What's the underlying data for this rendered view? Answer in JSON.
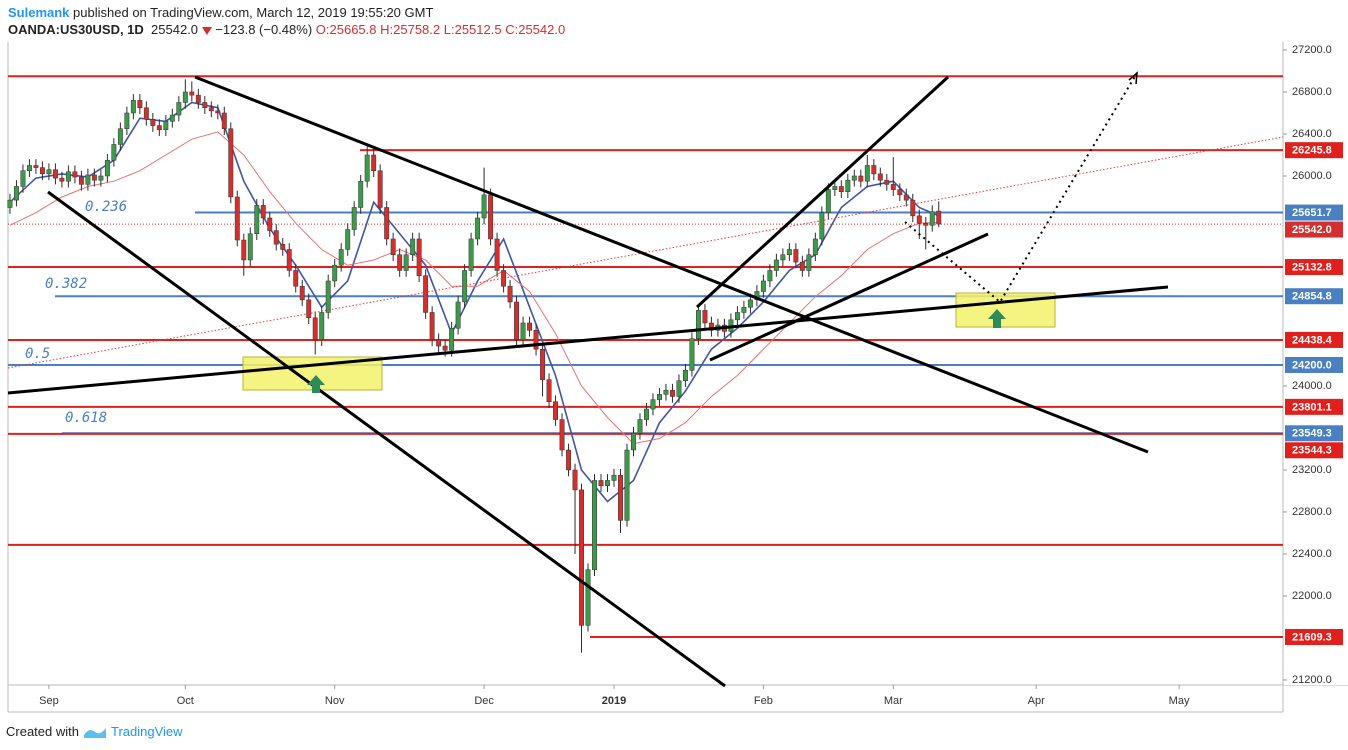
{
  "header": {
    "author": "Sulemank",
    "published": "published on TradingView.com, March 12, 2019 19:55:20 GMT",
    "symbol": "OANDA:US30USD, 1D",
    "last": "25542.0",
    "change": "−123.8 (−0.48%)",
    "open": "O:25665.8",
    "high": "H:25758.2",
    "low": "L:25512.5",
    "close": "C:25542.0"
  },
  "footer": {
    "created": "Created with",
    "brand": "TradingView"
  },
  "chart_data": {
    "type": "candlestick",
    "up_color": "#3d9a4a",
    "down_color": "#d32f2f",
    "wick_color": "#2b2b2b",
    "open": [
      25700,
      25770,
      25900,
      26050,
      26100,
      26080,
      26020,
      26060,
      25980,
      25950,
      26040,
      25990,
      25920,
      26010,
      25960,
      26000,
      26150,
      26300,
      26450,
      26600,
      26720,
      26650,
      26540,
      26480,
      26440,
      26520,
      26580,
      26700,
      26800,
      26770,
      26700,
      26650,
      26620,
      26600,
      26450,
      25800,
      25390,
      25200,
      25450,
      25720,
      25600,
      25480,
      25350,
      25300,
      25100,
      24950,
      24820,
      24650,
      24440,
      24700,
      25000,
      25150,
      25300,
      25490,
      25700,
      25950,
      26200,
      26050,
      25700,
      25400,
      25250,
      25100,
      25250,
      25400,
      25050,
      24700,
      24440,
      24380,
      24340,
      24550,
      24800,
      25100,
      25400,
      25600,
      25820,
      25400,
      25100,
      24950,
      24800,
      24440,
      24600,
      24530,
      24350,
      24060,
      23850,
      23680,
      23390,
      23200,
      23010,
      21720,
      22250,
      23100,
      23050,
      23100,
      23150,
      22720,
      23390,
      23550,
      23680,
      23780,
      23870,
      23920,
      23960,
      23900,
      24050,
      24150,
      24450,
      24720,
      24600,
      24530,
      24580,
      24520,
      24630,
      24700,
      24750,
      24820,
      24900,
      25000,
      25100,
      25200,
      25250,
      25300,
      25180,
      25100,
      25250,
      25400,
      25650,
      25870,
      25900,
      25850,
      25960,
      26000,
      25950,
      26100,
      26020,
      25960,
      25920,
      25870,
      25820,
      25770,
      25620,
      25550,
      25530,
      25665.8
    ],
    "high": [
      25830,
      25960,
      26110,
      26160,
      26160,
      26140,
      26120,
      26120,
      26040,
      26100,
      26100,
      26050,
      26070,
      26070,
      26060,
      26210,
      26360,
      26510,
      26660,
      26780,
      26780,
      26710,
      26600,
      26540,
      26580,
      26640,
      26760,
      26920,
      26900,
      26830,
      26760,
      26710,
      26680,
      26660,
      26510,
      25860,
      25450,
      25510,
      25780,
      25780,
      25660,
      25540,
      25410,
      25360,
      25160,
      25010,
      24880,
      24710,
      24760,
      25060,
      25210,
      25360,
      25550,
      25760,
      26010,
      26280,
      26260,
      26110,
      25760,
      25460,
      25310,
      25310,
      25460,
      25460,
      25110,
      24760,
      24500,
      24440,
      24610,
      24860,
      25160,
      25460,
      25660,
      26080,
      25880,
      25460,
      25160,
      25010,
      24860,
      24660,
      24660,
      24590,
      24410,
      24120,
      23910,
      23740,
      23450,
      23260,
      23070,
      22310,
      23160,
      23160,
      23160,
      23210,
      23210,
      23450,
      23610,
      23740,
      23840,
      23930,
      23980,
      24020,
      24020,
      24110,
      24210,
      24510,
      24780,
      24780,
      24660,
      24640,
      24640,
      24690,
      24760,
      24810,
      24880,
      24960,
      25060,
      25160,
      25260,
      25310,
      25360,
      25360,
      25240,
      25310,
      25460,
      25710,
      25930,
      25960,
      25960,
      26020,
      26060,
      26060,
      26200,
      26160,
      26080,
      26020,
      26180,
      25930,
      25880,
      25830,
      25680,
      25610,
      25720,
      25758.2
    ],
    "low": [
      25640,
      25710,
      25840,
      25990,
      26020,
      25960,
      25960,
      25920,
      25890,
      25890,
      25930,
      25860,
      25860,
      25900,
      25900,
      25940,
      26090,
      26240,
      26390,
      26540,
      26590,
      26480,
      26420,
      26380,
      26380,
      26460,
      26520,
      26640,
      26710,
      26640,
      26590,
      26560,
      26540,
      26390,
      25740,
      25330,
      25050,
      25140,
      25390,
      25540,
      25420,
      25290,
      25240,
      25040,
      24890,
      24760,
      24590,
      24300,
      24380,
      24640,
      24940,
      25090,
      25240,
      25430,
      25640,
      25890,
      25990,
      25640,
      25340,
      25190,
      25040,
      25040,
      25190,
      24990,
      24640,
      24380,
      24320,
      24280,
      24280,
      24490,
      24740,
      25040,
      25340,
      25540,
      25340,
      25040,
      24890,
      24740,
      24380,
      24380,
      24470,
      24290,
      23900,
      23790,
      23620,
      23330,
      23140,
      22400,
      21460,
      21660,
      22190,
      22990,
      22990,
      23040,
      22600,
      22660,
      23330,
      23490,
      23620,
      23720,
      23810,
      23860,
      23840,
      23840,
      23990,
      24090,
      24390,
      24540,
      24470,
      24470,
      24460,
      24460,
      24570,
      24640,
      24690,
      24760,
      24840,
      24940,
      25040,
      25140,
      25190,
      25120,
      25040,
      25040,
      25190,
      25340,
      25590,
      25810,
      25790,
      25790,
      25900,
      25890,
      25890,
      25960,
      25900,
      25860,
      25810,
      25760,
      25710,
      25560,
      25400,
      25300,
      25470,
      25512.5
    ],
    "close": [
      25770,
      25900,
      26050,
      26100,
      26080,
      26020,
      26060,
      25980,
      25950,
      26040,
      25990,
      25920,
      26010,
      25960,
      26000,
      26150,
      26300,
      26450,
      26600,
      26720,
      26650,
      26540,
      26480,
      26440,
      26520,
      26580,
      26700,
      26800,
      26770,
      26700,
      26650,
      26620,
      26600,
      26450,
      25800,
      25390,
      25200,
      25450,
      25720,
      25600,
      25480,
      25350,
      25300,
      25100,
      24950,
      24820,
      24650,
      24440,
      24700,
      25000,
      25150,
      25300,
      25490,
      25700,
      25950,
      26200,
      26050,
      25700,
      25400,
      25250,
      25100,
      25250,
      25400,
      25050,
      24700,
      24440,
      24380,
      24340,
      24550,
      24800,
      25100,
      25400,
      25600,
      25820,
      25400,
      25100,
      24950,
      24800,
      24440,
      24600,
      24530,
      24350,
      24060,
      23850,
      23680,
      23390,
      23200,
      23010,
      21720,
      22250,
      23100,
      23050,
      23100,
      23150,
      22720,
      23390,
      23550,
      23680,
      23780,
      23870,
      23920,
      23960,
      23900,
      24050,
      24150,
      24450,
      24720,
      24600,
      24530,
      24580,
      24520,
      24630,
      24700,
      24750,
      24820,
      24900,
      25000,
      25100,
      25200,
      25250,
      25300,
      25180,
      25100,
      25250,
      25400,
      25650,
      25870,
      25900,
      25850,
      25960,
      26000,
      25950,
      26100,
      26020,
      25960,
      25920,
      25870,
      25820,
      25770,
      25620,
      25550,
      25530,
      25660,
      25542
    ],
    "moving_averages": [
      {
        "color": "#3f55a5",
        "x": [
          0,
          4,
          8,
          12,
          16,
          20,
          24,
          28,
          32,
          36,
          40,
          44,
          48,
          52,
          56,
          60,
          64,
          68,
          72,
          76,
          80,
          84,
          88,
          92,
          96,
          100,
          104,
          108,
          112,
          116,
          120,
          124,
          128,
          132,
          136,
          140,
          143
        ],
        "values": [
          25750,
          25980,
          26020,
          25990,
          26150,
          26550,
          26520,
          26700,
          26650,
          25950,
          25500,
          25150,
          24750,
          25000,
          25750,
          25450,
          25150,
          24500,
          25000,
          25400,
          24750,
          24100,
          23200,
          22900,
          23100,
          23650,
          23950,
          24350,
          24550,
          24800,
          25100,
          25250,
          25700,
          25900,
          25950,
          25700,
          25620
        ]
      },
      {
        "color": "#e57373",
        "x": [
          0,
          4,
          8,
          12,
          16,
          20,
          24,
          28,
          32,
          36,
          40,
          44,
          48,
          52,
          56,
          60,
          64,
          68,
          72,
          76,
          80,
          84,
          88,
          92,
          96,
          100,
          104,
          108,
          112,
          116,
          120,
          124,
          128,
          132,
          136,
          140,
          143
        ],
        "values": [
          25530,
          25650,
          25800,
          25900,
          25950,
          26050,
          26200,
          26350,
          26420,
          26200,
          25850,
          25550,
          25300,
          25150,
          25200,
          25300,
          25200,
          24950,
          24950,
          25100,
          24900,
          24500,
          24000,
          23700,
          23450,
          23500,
          23650,
          23900,
          24100,
          24350,
          24600,
          24850,
          25050,
          25300,
          25450,
          25550,
          25560
        ]
      }
    ],
    "levels": [
      {
        "value": 26950,
        "color": "#e0201c",
        "tagged": false
      },
      {
        "value": 26245.8,
        "color": "#e0201c",
        "tagged": true
      },
      {
        "value": 25651.7,
        "color": "#4a7fc1",
        "tagged": true,
        "fib": "0.236"
      },
      {
        "value": 25132.8,
        "color": "#e0201c",
        "tagged": true
      },
      {
        "value": 24854.8,
        "color": "#4a7fc1",
        "tagged": true,
        "fib": "0.382"
      },
      {
        "value": 24438.4,
        "color": "#e0201c",
        "tagged": true
      },
      {
        "value": 24200,
        "label": "24200.0",
        "color": "#4a7fc1",
        "tagged": true,
        "fib": "0.5"
      },
      {
        "value": 23801.1,
        "color": "#e0201c",
        "tagged": true
      },
      {
        "value": 23549.3,
        "color": "#4a7fc1",
        "tagged": true,
        "fib": "0.618"
      },
      {
        "value": 23544.3,
        "color": "#e0201c",
        "tagged": true
      },
      {
        "value": 22486,
        "color": "#e0201c",
        "tagged": false
      },
      {
        "value": 21609.3,
        "color": "#e0201c",
        "tagged": true
      }
    ],
    "last_price": {
      "value": 25542,
      "label": "25542.0",
      "color": "#d32f2f"
    },
    "xlim": [
      -0.3,
      196
    ],
    "ylim": [
      21152,
      27276
    ],
    "xticks": [
      {
        "value": 6,
        "label": "Sep"
      },
      {
        "value": 27,
        "label": "Oct"
      },
      {
        "value": 50,
        "label": "Nov"
      },
      {
        "value": 73,
        "label": "Dec"
      },
      {
        "value": 93,
        "label": "2019"
      },
      {
        "value": 116,
        "label": "Feb"
      },
      {
        "value": 136,
        "label": "Mar"
      },
      {
        "value": 158,
        "label": "Apr"
      },
      {
        "value": 180,
        "label": "May"
      }
    ],
    "yticks": [
      {
        "value": 27200,
        "label": "27200.0"
      },
      {
        "value": 26800,
        "label": "26800.0"
      },
      {
        "value": 26400,
        "label": "26400.0"
      },
      {
        "value": 26000,
        "label": "26000.0"
      },
      {
        "value": 24000,
        "label": "24000.0"
      },
      {
        "value": 23200,
        "label": "23200.0"
      },
      {
        "value": 22800,
        "label": "22800.0"
      },
      {
        "value": 22400,
        "label": "22400.0"
      },
      {
        "value": 22000,
        "label": "22000.0"
      },
      {
        "value": 21200,
        "label": "21200.0"
      }
    ]
  }
}
